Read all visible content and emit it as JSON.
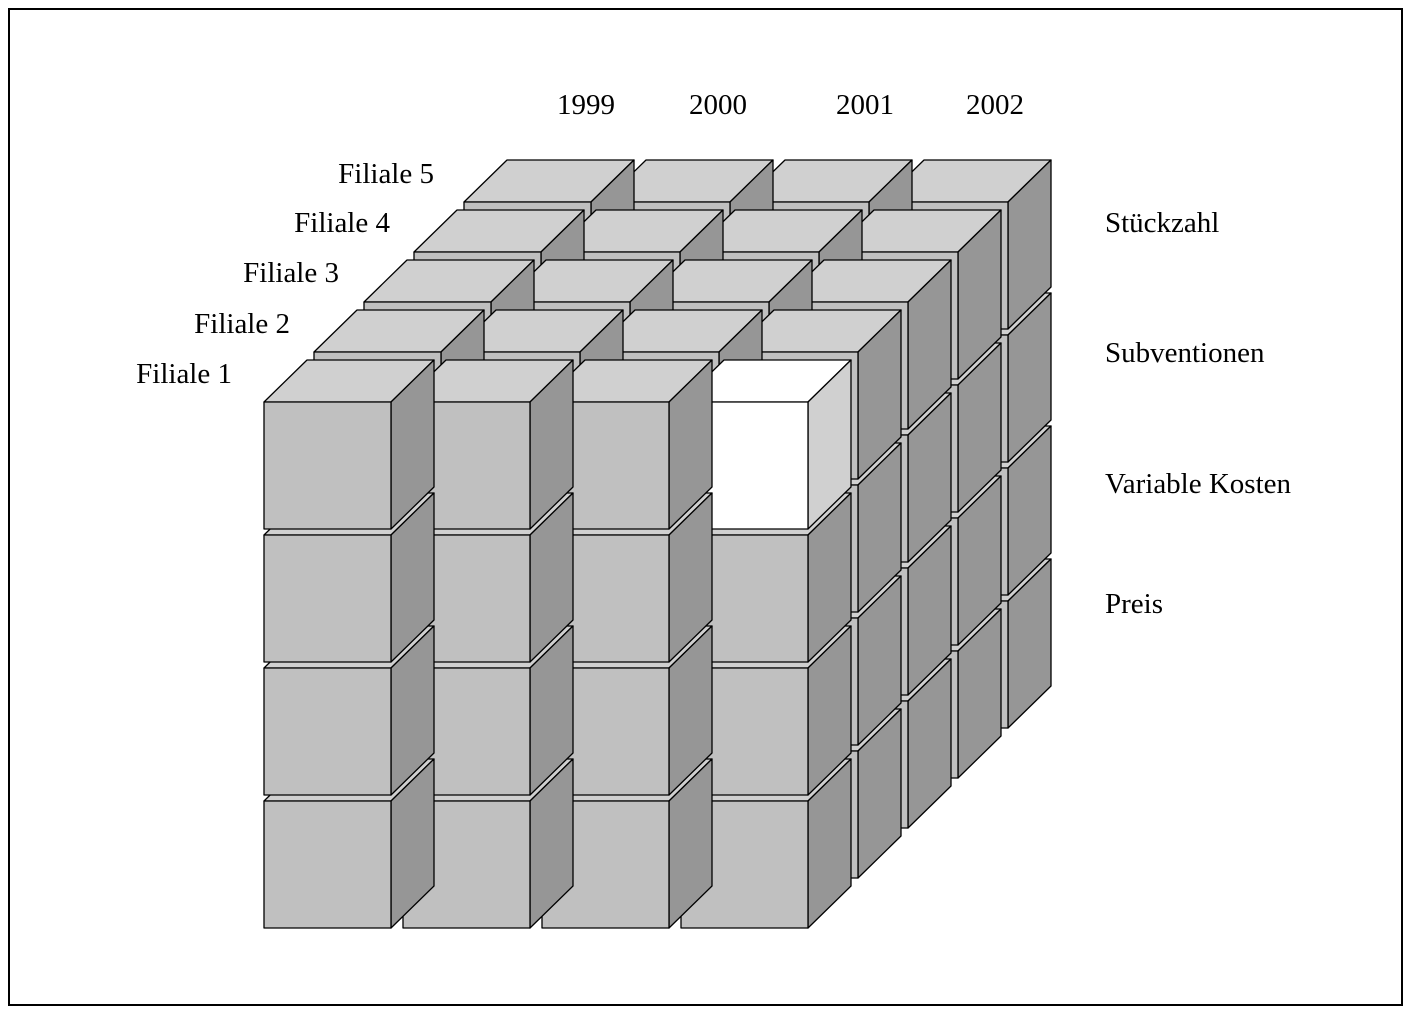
{
  "years": [
    "1999",
    "2000",
    "2001",
    "2002"
  ],
  "branches": [
    "Filiale 1",
    "Filiale 2",
    "Filiale 3",
    "Filiale 4",
    "Filiale 5"
  ],
  "measures": [
    "Stückzahl",
    "Subventionen",
    "Variable Kosten",
    "Preis"
  ],
  "highlight": {
    "year": "2002",
    "branch": "Filiale 1",
    "measure": "Stückzahl"
  },
  "colors": {
    "front": "#c0c0c0",
    "top": "#d0d0d0",
    "side": "#969696",
    "highlight_front": "#ffffff",
    "highlight_top": "#ffffff",
    "highlight_side": "#d0d0d0",
    "outline": "#000000"
  }
}
